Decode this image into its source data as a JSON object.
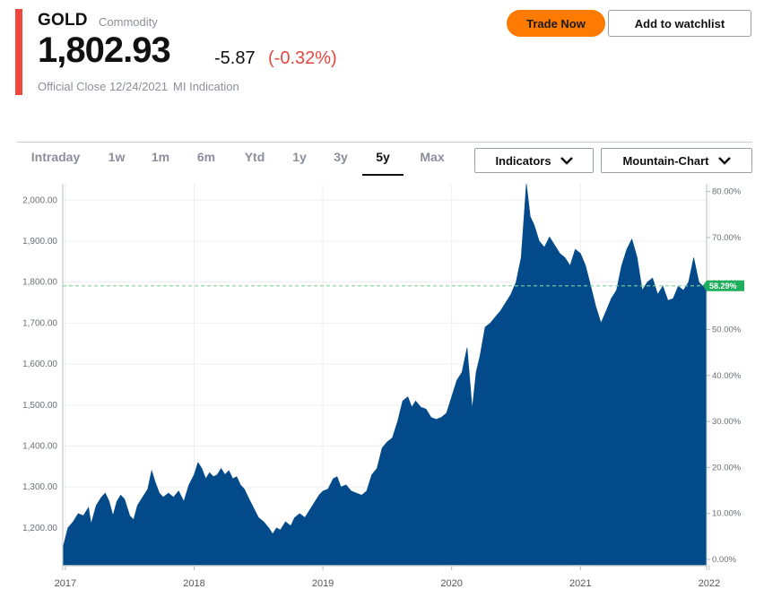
{
  "header": {
    "symbol": "GOLD",
    "asset_type": "Commodity",
    "price": "1,802.93",
    "change": "-5.87",
    "change_percent": "(-0.32%)",
    "close_label": "Official Close 12/24/2021",
    "indication_label": "MI Indication",
    "accent_color": "#f0473d",
    "negative_color": "#e5473e"
  },
  "actions": {
    "trade_label": "Trade Now",
    "watchlist_label": "Add to watchlist",
    "trade_color": "#ff7a00"
  },
  "toolbar": {
    "tabs": [
      {
        "label": "Intraday",
        "active": false
      },
      {
        "label": "1w",
        "active": false
      },
      {
        "label": "1m",
        "active": false
      },
      {
        "label": "6m",
        "active": false
      },
      {
        "label": "Ytd",
        "active": false
      },
      {
        "label": "1y",
        "active": false
      },
      {
        "label": "3y",
        "active": false
      },
      {
        "label": "5y",
        "active": true
      },
      {
        "label": "Max",
        "active": false
      }
    ],
    "indicators_label": "Indicators",
    "chart_type_label": "Mountain-Chart",
    "dropdown_icon": "chevron-down-icon"
  },
  "chart_data": {
    "type": "area",
    "color": "#034a8a",
    "x_ticks": [
      "2017",
      "2018",
      "2019",
      "2020",
      "2021",
      "2022"
    ],
    "y_left_ticks": [
      "1,200.00",
      "1,300.00",
      "1,400.00",
      "1,500.00",
      "1,600.00",
      "1,700.00",
      "1,800.00",
      "1,900.00",
      "2,000.00"
    ],
    "y_right_ticks": [
      "0.00%",
      "10.00%",
      "20.00%",
      "30.00%",
      "40.00%",
      "50.00%",
      "60.00%",
      "70.00%",
      "80.00%"
    ],
    "ylim": [
      1110,
      2040
    ],
    "xlim": [
      2016.98,
      2021.98
    ],
    "reference_label": "58.29%",
    "reference_value": 1791,
    "reference_color": "#1fae5b",
    "series": [
      {
        "values": [
          [
            2016.98,
            1150
          ],
          [
            2017.02,
            1200
          ],
          [
            2017.06,
            1215
          ],
          [
            2017.1,
            1235
          ],
          [
            2017.14,
            1230
          ],
          [
            2017.18,
            1250
          ],
          [
            2017.2,
            1210
          ],
          [
            2017.24,
            1255
          ],
          [
            2017.28,
            1275
          ],
          [
            2017.31,
            1285
          ],
          [
            2017.34,
            1265
          ],
          [
            2017.37,
            1230
          ],
          [
            2017.4,
            1265
          ],
          [
            2017.43,
            1280
          ],
          [
            2017.46,
            1270
          ],
          [
            2017.5,
            1230
          ],
          [
            2017.53,
            1220
          ],
          [
            2017.56,
            1255
          ],
          [
            2017.6,
            1275
          ],
          [
            2017.64,
            1295
          ],
          [
            2017.67,
            1340
          ],
          [
            2017.7,
            1310
          ],
          [
            2017.73,
            1285
          ],
          [
            2017.76,
            1275
          ],
          [
            2017.8,
            1285
          ],
          [
            2017.84,
            1275
          ],
          [
            2017.88,
            1290
          ],
          [
            2017.92,
            1265
          ],
          [
            2017.96,
            1305
          ],
          [
            2018.0,
            1330
          ],
          [
            2018.03,
            1360
          ],
          [
            2018.06,
            1345
          ],
          [
            2018.09,
            1320
          ],
          [
            2018.12,
            1335
          ],
          [
            2018.15,
            1325
          ],
          [
            2018.18,
            1330
          ],
          [
            2018.21,
            1345
          ],
          [
            2018.24,
            1330
          ],
          [
            2018.27,
            1340
          ],
          [
            2018.3,
            1320
          ],
          [
            2018.33,
            1325
          ],
          [
            2018.36,
            1305
          ],
          [
            2018.39,
            1295
          ],
          [
            2018.42,
            1275
          ],
          [
            2018.46,
            1250
          ],
          [
            2018.5,
            1225
          ],
          [
            2018.54,
            1215
          ],
          [
            2018.58,
            1200
          ],
          [
            2018.61,
            1185
          ],
          [
            2018.64,
            1200
          ],
          [
            2018.67,
            1195
          ],
          [
            2018.71,
            1215
          ],
          [
            2018.75,
            1205
          ],
          [
            2018.78,
            1225
          ],
          [
            2018.82,
            1235
          ],
          [
            2018.86,
            1225
          ],
          [
            2018.9,
            1245
          ],
          [
            2018.93,
            1260
          ],
          [
            2018.97,
            1280
          ],
          [
            2019.0,
            1290
          ],
          [
            2019.04,
            1295
          ],
          [
            2019.08,
            1320
          ],
          [
            2019.11,
            1325
          ],
          [
            2019.14,
            1300
          ],
          [
            2019.18,
            1305
          ],
          [
            2019.22,
            1290
          ],
          [
            2019.26,
            1285
          ],
          [
            2019.3,
            1280
          ],
          [
            2019.34,
            1290
          ],
          [
            2019.38,
            1330
          ],
          [
            2019.42,
            1345
          ],
          [
            2019.46,
            1395
          ],
          [
            2019.5,
            1410
          ],
          [
            2019.54,
            1420
          ],
          [
            2019.58,
            1460
          ],
          [
            2019.62,
            1510
          ],
          [
            2019.66,
            1520
          ],
          [
            2019.69,
            1495
          ],
          [
            2019.72,
            1510
          ],
          [
            2019.76,
            1495
          ],
          [
            2019.8,
            1490
          ],
          [
            2019.84,
            1470
          ],
          [
            2019.88,
            1465
          ],
          [
            2019.92,
            1470
          ],
          [
            2019.96,
            1480
          ],
          [
            2020.0,
            1520
          ],
          [
            2020.04,
            1560
          ],
          [
            2020.08,
            1580
          ],
          [
            2020.12,
            1640
          ],
          [
            2020.16,
            1490
          ],
          [
            2020.19,
            1580
          ],
          [
            2020.22,
            1620
          ],
          [
            2020.26,
            1690
          ],
          [
            2020.3,
            1700
          ],
          [
            2020.34,
            1715
          ],
          [
            2020.38,
            1730
          ],
          [
            2020.42,
            1750
          ],
          [
            2020.46,
            1770
          ],
          [
            2020.5,
            1800
          ],
          [
            2020.54,
            1860
          ],
          [
            2020.58,
            2040
          ],
          [
            2020.61,
            1960
          ],
          [
            2020.64,
            1940
          ],
          [
            2020.68,
            1900
          ],
          [
            2020.72,
            1885
          ],
          [
            2020.76,
            1910
          ],
          [
            2020.8,
            1890
          ],
          [
            2020.84,
            1870
          ],
          [
            2020.88,
            1860
          ],
          [
            2020.92,
            1840
          ],
          [
            2020.96,
            1880
          ],
          [
            2021.0,
            1870
          ],
          [
            2021.04,
            1840
          ],
          [
            2021.08,
            1790
          ],
          [
            2021.12,
            1740
          ],
          [
            2021.16,
            1700
          ],
          [
            2021.2,
            1730
          ],
          [
            2021.24,
            1760
          ],
          [
            2021.28,
            1780
          ],
          [
            2021.32,
            1840
          ],
          [
            2021.36,
            1880
          ],
          [
            2021.4,
            1905
          ],
          [
            2021.44,
            1860
          ],
          [
            2021.48,
            1780
          ],
          [
            2021.52,
            1800
          ],
          [
            2021.56,
            1810
          ],
          [
            2021.6,
            1770
          ],
          [
            2021.64,
            1790
          ],
          [
            2021.68,
            1755
          ],
          [
            2021.72,
            1760
          ],
          [
            2021.76,
            1790
          ],
          [
            2021.8,
            1780
          ],
          [
            2021.84,
            1800
          ],
          [
            2021.88,
            1860
          ],
          [
            2021.92,
            1800
          ],
          [
            2021.95,
            1790
          ],
          [
            2021.98,
            1802
          ]
        ]
      }
    ]
  }
}
